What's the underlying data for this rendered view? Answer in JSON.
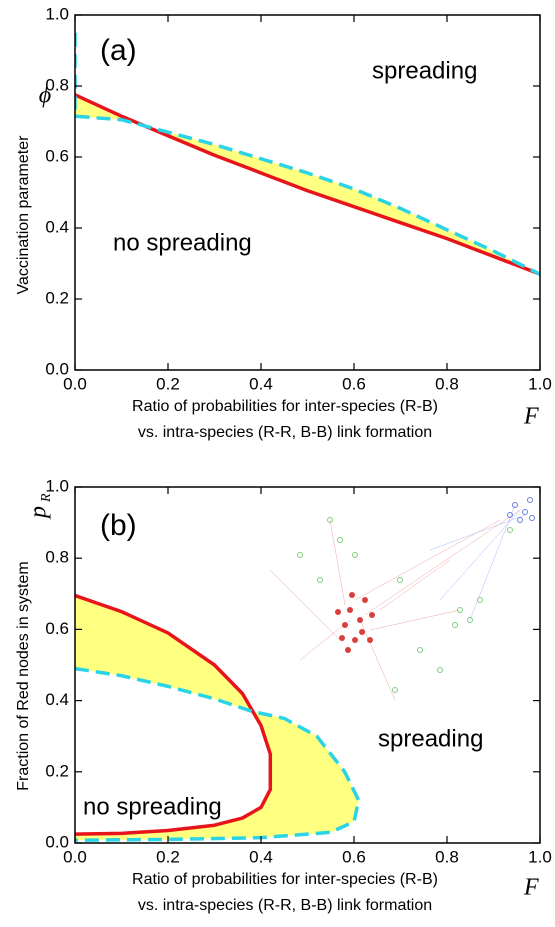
{
  "chart_data": [
    {
      "type": "line",
      "panel_label": "(a)",
      "annotations": [
        "spreading",
        "no spreading"
      ],
      "y_label": "Vaccination parameter",
      "y_symbol": "ϕ",
      "x_label_lines": [
        "Ratio of probabilities for inter-species (R-B)",
        "vs. intra-species (R-R, B-B) link formation"
      ],
      "x_symbol": "F",
      "xlim": [
        0,
        1
      ],
      "ylim": [
        0,
        1
      ],
      "xticks": [
        {
          "value": 0,
          "label": "0.0"
        },
        0.2,
        0.4,
        0.6,
        0.8,
        {
          "value": 1,
          "label": "1.0"
        }
      ],
      "yticks": [
        {
          "value": 0,
          "label": "0.0"
        },
        0.2,
        0.4,
        0.6,
        0.8,
        {
          "value": 1,
          "label": "1.0"
        }
      ],
      "fill_color": "#ffff80",
      "series": [
        {
          "color": "#e8141c",
          "dashed": false,
          "x": [
            0,
            0.1,
            0.2,
            0.3,
            0.4,
            0.5,
            0.6,
            0.7,
            0.8,
            0.9,
            1.0
          ],
          "values": [
            0.775,
            0.715,
            0.66,
            0.605,
            0.555,
            0.505,
            0.46,
            0.415,
            0.37,
            0.32,
            0.27
          ]
        },
        {
          "color": "#2ad4e6",
          "dashed": true,
          "x": [
            0,
            0,
            0.05,
            0.1,
            0.2,
            0.3,
            0.4,
            0.5,
            0.6,
            0.7,
            0.8,
            0.9,
            1.0
          ],
          "values": [
            0.95,
            0.715,
            0.71,
            0.705,
            0.67,
            0.635,
            0.595,
            0.555,
            0.51,
            0.455,
            0.395,
            0.335,
            0.27
          ]
        }
      ]
    },
    {
      "type": "line",
      "panel_label": "(b)",
      "annotations": [
        "spreading",
        "no spreading"
      ],
      "y_label": "Fraction of Red nodes in system",
      "y_symbol": "p",
      "y_symbol_subscript": "R",
      "x_label_lines": [
        "Ratio of probabilities for inter-species (R-B)",
        "vs. intra-species (R-R, B-B) link formation"
      ],
      "x_symbol": "F",
      "xlim": [
        0,
        1
      ],
      "ylim": [
        0,
        1
      ],
      "xticks": [
        {
          "value": 0,
          "label": "0.0"
        },
        0.2,
        0.4,
        0.6,
        0.8,
        {
          "value": 1,
          "label": "1.0"
        }
      ],
      "yticks": [
        {
          "value": 0,
          "label": "0.0"
        },
        0.2,
        0.4,
        0.6,
        0.8,
        {
          "value": 1,
          "label": "1.0"
        }
      ],
      "fill_color": "#ffff80",
      "series": [
        {
          "color": "#e8141c",
          "dashed": false,
          "x": [
            0,
            0.1,
            0.2,
            0.3,
            0.36,
            0.4,
            0.42,
            0.42,
            0.4,
            0.36,
            0.3,
            0.2,
            0.1,
            0
          ],
          "values": [
            0.695,
            0.65,
            0.59,
            0.5,
            0.42,
            0.33,
            0.25,
            0.15,
            0.1,
            0.07,
            0.05,
            0.035,
            0.027,
            0.025
          ]
        },
        {
          "color": "#2ad4e6",
          "dashed": true,
          "x": [
            0,
            0.1,
            0.2,
            0.3,
            0.38,
            0.45,
            0.52,
            0.58,
            0.61,
            0.6,
            0.55,
            0.4,
            0.2,
            0
          ],
          "values": [
            0.49,
            0.47,
            0.44,
            0.405,
            0.37,
            0.35,
            0.3,
            0.2,
            0.12,
            0.06,
            0.03,
            0.015,
            0.01,
            0.008
          ]
        }
      ]
    }
  ]
}
